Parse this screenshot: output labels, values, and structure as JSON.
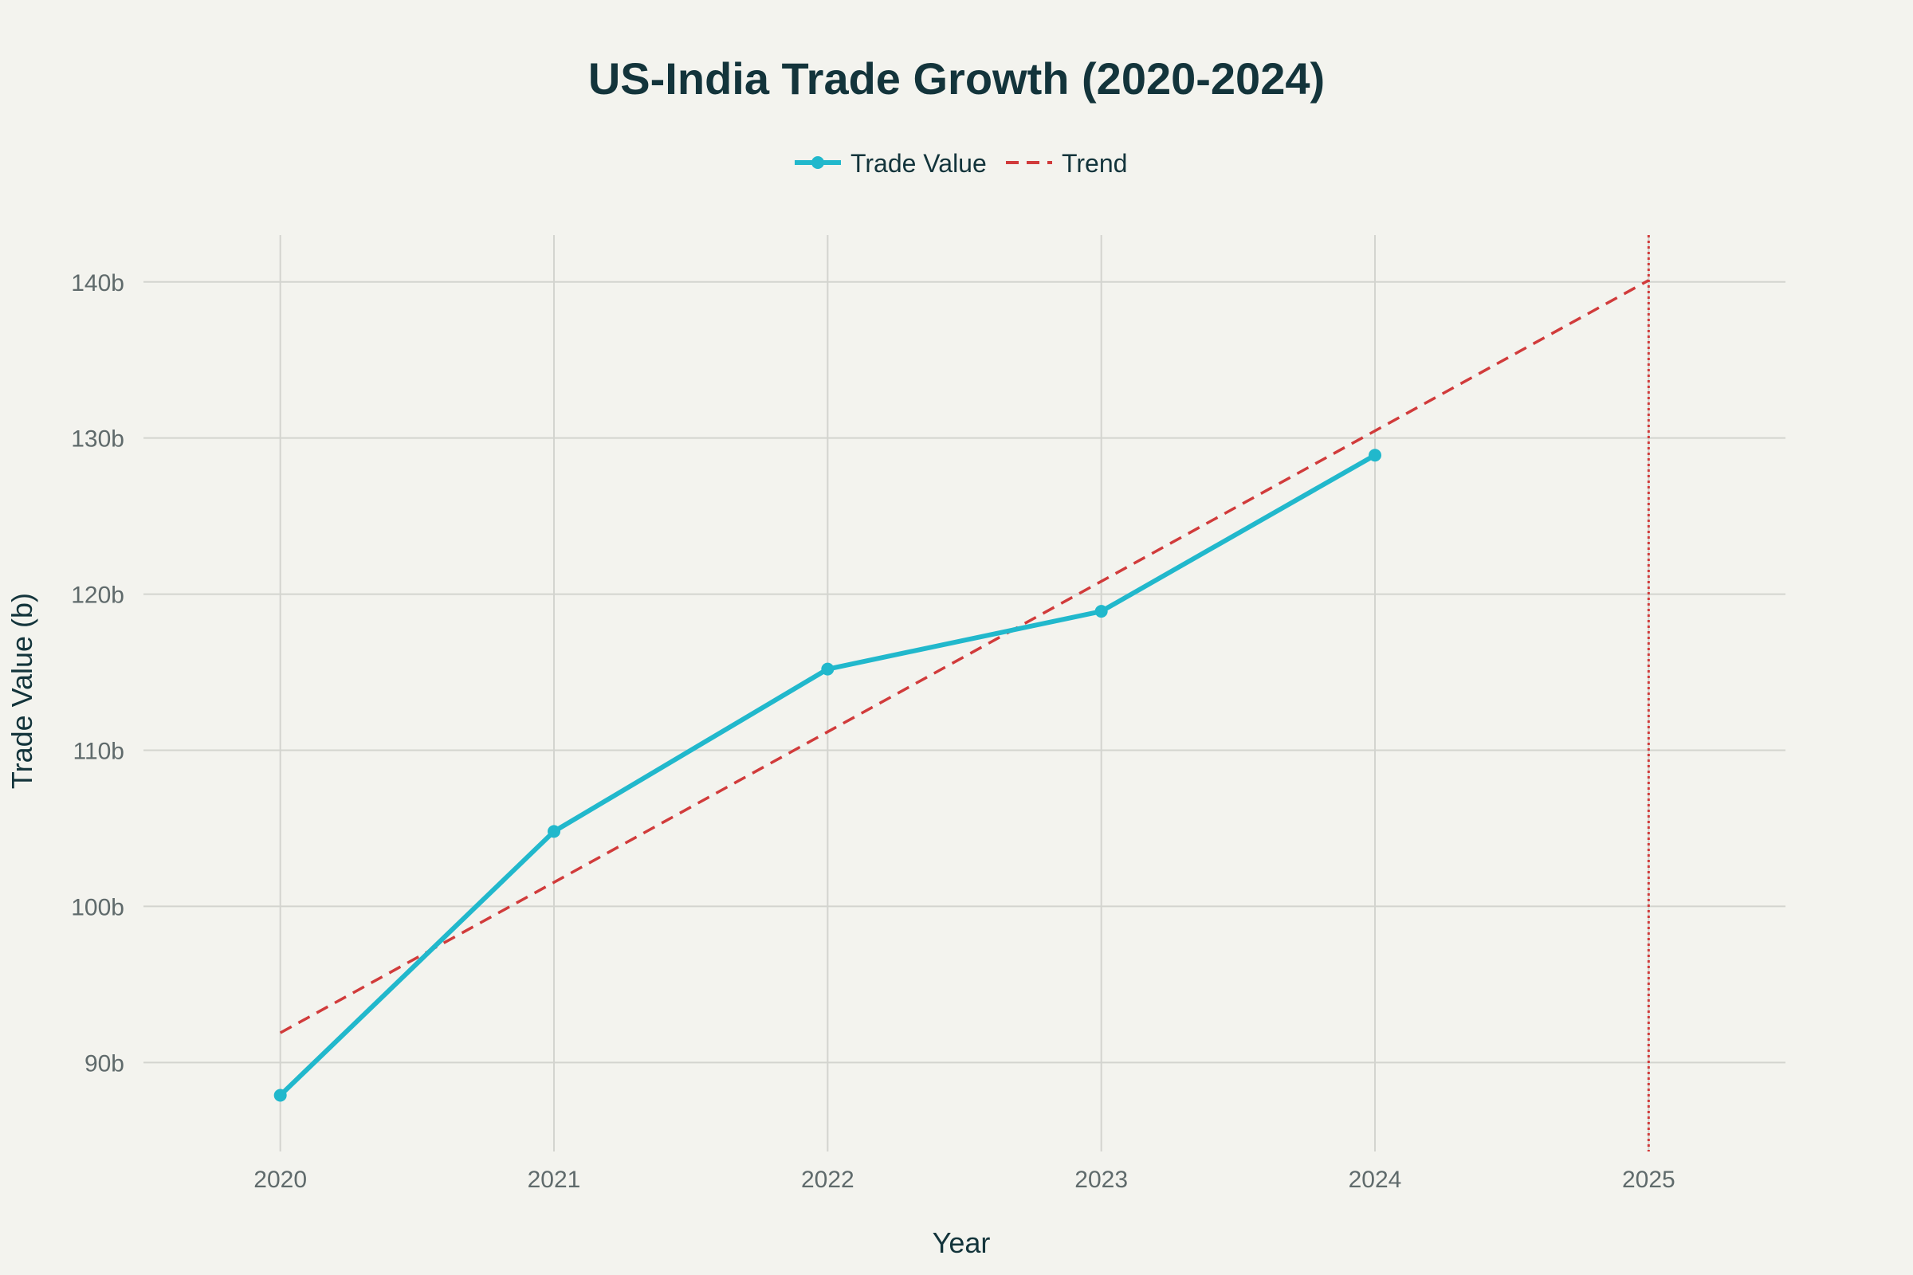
{
  "chart_data": {
    "type": "line",
    "title": "US-India Trade Growth (2020-2024)",
    "xlabel": "Year",
    "ylabel": "Trade Value (b)",
    "x_ticks": [
      "2020",
      "2021",
      "2022",
      "2023",
      "2024",
      "2025"
    ],
    "y_ticks": [
      "90b",
      "100b",
      "110b",
      "120b",
      "130b",
      "140b"
    ],
    "y_tick_values": [
      90,
      100,
      110,
      120,
      130,
      140
    ],
    "xlim": [
      2019.5,
      2025.5
    ],
    "ylim": [
      84.3,
      143
    ],
    "grid": true,
    "legend_position": "top-center",
    "series": [
      {
        "name": "Trade Value",
        "style": "line+markers",
        "color": "#21b8cc",
        "x": [
          2020,
          2021,
          2022,
          2023,
          2024
        ],
        "values": [
          87.9,
          104.8,
          115.2,
          118.9,
          128.9
        ]
      },
      {
        "name": "Trend",
        "style": "dashed",
        "color": "#d13b3b",
        "x": [
          2020,
          2025
        ],
        "values": [
          91.9,
          140.1
        ]
      }
    ],
    "annotations": [
      {
        "type": "vertical-line",
        "x": 2025,
        "style": "dotted",
        "color": "#d13b3b"
      }
    ]
  }
}
